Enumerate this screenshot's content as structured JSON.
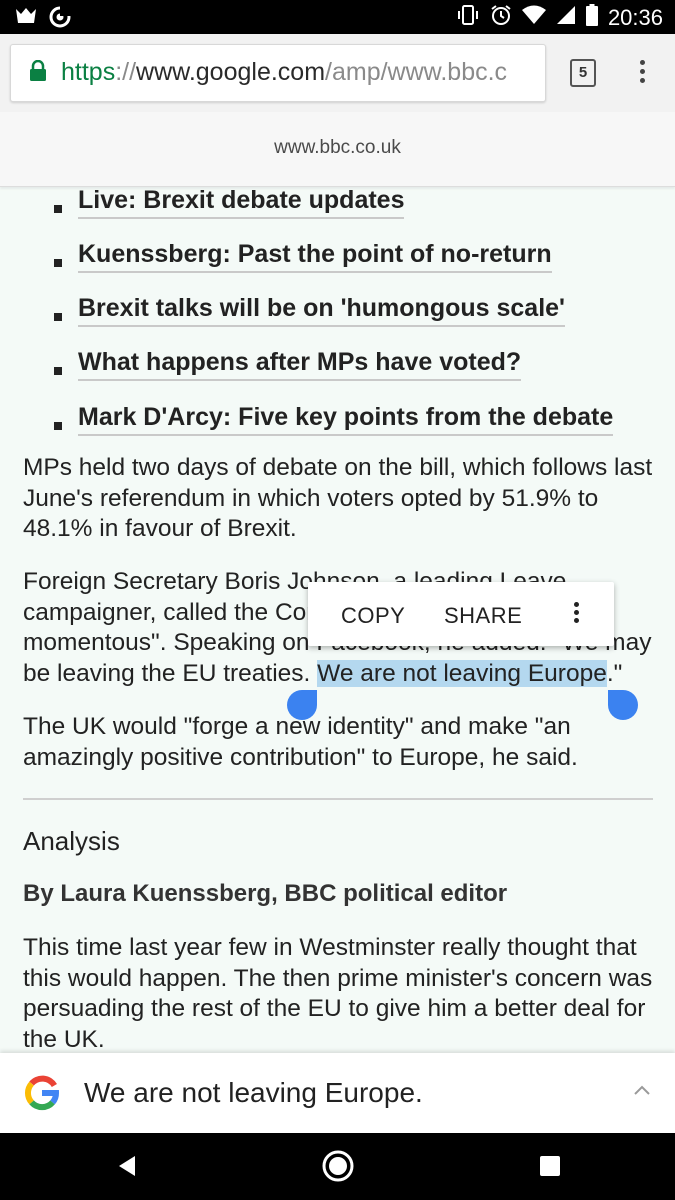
{
  "status_bar": {
    "time": "20:36",
    "icons": [
      "notification-icon",
      "sync-icon",
      "vibrate-icon",
      "alarm-icon",
      "wifi-icon",
      "signal-icon",
      "battery-icon"
    ]
  },
  "browser": {
    "url_scheme": "https",
    "url_sep": "://",
    "url_host": "www.google.com",
    "url_path": "/amp/www.bbc.c",
    "tab_count": "5"
  },
  "amp_header": {
    "domain": "www.bbc.co.uk"
  },
  "article": {
    "bullets": [
      "Live: Brexit debate updates",
      "Kuenssberg: Past the point of no-return",
      "Brexit talks will be on 'humongous scale'",
      "What happens after MPs have voted?",
      "Mark D'Arcy: Five key points from the debate"
    ],
    "para1": "MPs held two days of debate on the bill, which follows last June's referendum in which voters opted by 51.9% to 48.1% in favour of Brexit.",
    "para2_line1": "Foreign Secretary Boris Johnson, a leading Leave",
    "para2_line2": "campaigner, called the Commons vote \"extremely",
    "para2_line3": "momentous\". Speaking on Facebook, he added: \"We may",
    "para2_line4_pre": "be leaving the EU treaties. ",
    "para2_selected": "We are not leaving Europe",
    "para2_line4_post": ".\"",
    "para3": "The UK would \"forge a new identity\" and make \"an amazingly positive contribution\" to Europe, he said.",
    "analysis_heading": "Analysis",
    "byline": "By Laura Kuenssberg, BBC political editor",
    "para4": "This time last year few in Westminster really thought that this would happen. The then prime minister's concern was persuading the rest of the EU to give him a better deal for the UK."
  },
  "selection_popup": {
    "copy": "COPY",
    "share": "SHARE"
  },
  "google_bar": {
    "query": "We are not leaving Europe."
  },
  "colors": {
    "accent": "#3b82f0",
    "highlight": "#b4d8ef",
    "lock_green": "#0b8043",
    "page_bg": "#f4faf7"
  }
}
